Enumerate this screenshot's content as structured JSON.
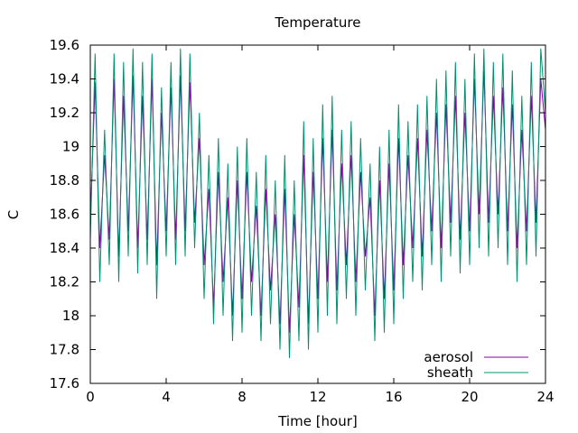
{
  "chart_data": {
    "type": "line",
    "title": "Temperature",
    "xlabel": "Time [hour]",
    "ylabel": "C",
    "xlim": [
      0,
      24
    ],
    "ylim": [
      17.6,
      19.6
    ],
    "xticks": [
      "0",
      "4",
      "8",
      "12",
      "16",
      "20",
      "24"
    ],
    "yticks": [
      "17.6",
      "17.8",
      "18",
      "18.2",
      "18.4",
      "18.6",
      "18.8",
      "19",
      "19.2",
      "19.4",
      "19.6"
    ],
    "grid": false,
    "legend_position": "bottom-right",
    "series": [
      {
        "name": "aerosol",
        "color": "#8000a0",
        "x": [
          0,
          0.25,
          0.5,
          0.75,
          1,
          1.25,
          1.5,
          1.75,
          2,
          2.25,
          2.5,
          2.75,
          3,
          3.25,
          3.5,
          3.75,
          4,
          4.25,
          4.5,
          4.75,
          5,
          5.25,
          5.5,
          5.75,
          6,
          6.25,
          6.5,
          6.75,
          7,
          7.25,
          7.5,
          7.75,
          8,
          8.25,
          8.5,
          8.75,
          9,
          9.25,
          9.5,
          9.75,
          10,
          10.25,
          10.5,
          10.75,
          11,
          11.25,
          11.5,
          11.75,
          12,
          12.25,
          12.5,
          12.75,
          13,
          13.25,
          13.5,
          13.75,
          14,
          14.25,
          14.5,
          14.75,
          15,
          15.25,
          15.5,
          15.75,
          16,
          16.25,
          16.5,
          16.75,
          17,
          17.25,
          17.5,
          17.75,
          18,
          18.25,
          18.5,
          18.75,
          19,
          19.25,
          19.5,
          19.75,
          20,
          20.25,
          20.5,
          20.75,
          21,
          21.25,
          21.5,
          21.75,
          22,
          22.25,
          22.5,
          22.75,
          23,
          23.25,
          23.5,
          23.75,
          24
        ],
        "y": [
          18.55,
          19.38,
          18.4,
          18.95,
          18.45,
          19.4,
          18.35,
          19.3,
          18.5,
          19.42,
          18.4,
          19.3,
          18.45,
          19.4,
          18.3,
          19.2,
          18.5,
          19.35,
          18.45,
          19.42,
          18.5,
          19.38,
          18.55,
          19.05,
          18.3,
          18.75,
          18.05,
          18.85,
          18.2,
          18.7,
          18.0,
          18.8,
          18.1,
          18.85,
          18.2,
          18.65,
          18.0,
          18.75,
          18.15,
          18.6,
          17.95,
          18.75,
          17.9,
          18.6,
          18.05,
          18.95,
          17.95,
          18.85,
          18.1,
          19.05,
          18.2,
          19.1,
          18.15,
          18.9,
          18.3,
          18.95,
          18.2,
          18.85,
          18.35,
          18.7,
          18.0,
          18.8,
          18.1,
          18.9,
          18.15,
          19.05,
          18.3,
          18.95,
          18.4,
          19.05,
          18.35,
          19.1,
          18.5,
          19.2,
          18.4,
          19.25,
          18.55,
          19.3,
          18.45,
          19.2,
          18.5,
          19.4,
          18.6,
          19.45,
          18.55,
          19.3,
          18.6,
          19.35,
          18.5,
          19.25,
          18.4,
          19.1,
          18.5,
          19.3,
          18.55,
          19.4,
          19.1
        ]
      },
      {
        "name": "sheath",
        "color": "#009070",
        "x": [
          0,
          0.25,
          0.5,
          0.75,
          1,
          1.25,
          1.5,
          1.75,
          2,
          2.25,
          2.5,
          2.75,
          3,
          3.25,
          3.5,
          3.75,
          4,
          4.25,
          4.5,
          4.75,
          5,
          5.25,
          5.5,
          5.75,
          6,
          6.25,
          6.5,
          6.75,
          7,
          7.25,
          7.5,
          7.75,
          8,
          8.25,
          8.5,
          8.75,
          9,
          9.25,
          9.5,
          9.75,
          10,
          10.25,
          10.5,
          10.75,
          11,
          11.25,
          11.5,
          11.75,
          12,
          12.25,
          12.5,
          12.75,
          13,
          13.25,
          13.5,
          13.75,
          14,
          14.25,
          14.5,
          14.75,
          15,
          15.25,
          15.5,
          15.75,
          16,
          16.25,
          16.5,
          16.75,
          17,
          17.25,
          17.5,
          17.75,
          18,
          18.25,
          18.5,
          18.75,
          19,
          19.25,
          19.5,
          19.75,
          20,
          20.25,
          20.5,
          20.75,
          21,
          21.25,
          21.5,
          21.75,
          22,
          22.25,
          22.5,
          22.75,
          23,
          23.25,
          23.5,
          23.75,
          24
        ],
        "y": [
          18.45,
          19.55,
          18.2,
          19.1,
          18.3,
          19.55,
          18.2,
          19.5,
          18.35,
          19.58,
          18.25,
          19.5,
          18.3,
          19.55,
          18.1,
          19.35,
          18.35,
          19.5,
          18.3,
          19.58,
          18.35,
          19.55,
          18.4,
          19.2,
          18.1,
          18.95,
          17.95,
          19.05,
          18.0,
          18.9,
          17.85,
          19.0,
          17.9,
          19.05,
          18.0,
          18.85,
          17.85,
          18.95,
          17.95,
          18.8,
          17.8,
          18.95,
          17.75,
          18.8,
          17.85,
          19.15,
          17.8,
          19.05,
          17.9,
          19.25,
          18.0,
          19.3,
          17.95,
          19.1,
          18.1,
          19.15,
          18.0,
          19.05,
          18.15,
          18.9,
          17.85,
          19.0,
          17.9,
          19.1,
          17.95,
          19.25,
          18.1,
          19.15,
          18.2,
          19.25,
          18.15,
          19.3,
          18.3,
          19.4,
          18.2,
          19.45,
          18.35,
          19.5,
          18.25,
          19.4,
          18.3,
          19.55,
          18.4,
          19.58,
          18.35,
          19.5,
          18.4,
          19.55,
          18.3,
          19.45,
          18.2,
          19.3,
          18.3,
          19.5,
          18.35,
          19.58,
          19.2
        ]
      }
    ]
  }
}
